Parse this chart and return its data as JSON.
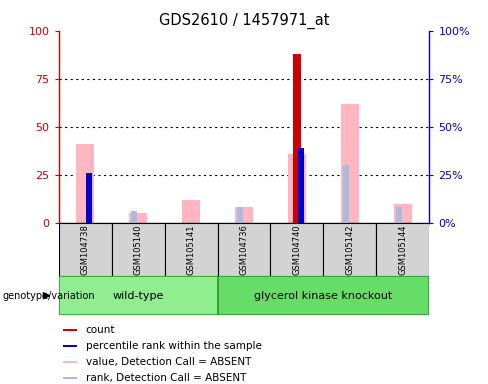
{
  "title": "GDS2610 / 1457971_at",
  "samples": [
    "GSM104738",
    "GSM105140",
    "GSM105141",
    "GSM104736",
    "GSM104740",
    "GSM105142",
    "GSM105144"
  ],
  "wildtype_count": 3,
  "count_values": [
    0,
    0,
    0,
    0,
    88,
    0,
    0
  ],
  "percentile_rank_values": [
    26,
    0,
    0,
    0,
    39,
    0,
    0
  ],
  "absent_value_values": [
    41,
    5,
    12,
    8,
    36,
    62,
    10
  ],
  "absent_rank_values": [
    0,
    6,
    0,
    8,
    0,
    30,
    8
  ],
  "ylim": [
    0,
    100
  ],
  "yticks": [
    0,
    25,
    50,
    75,
    100
  ],
  "ytick_labels_left": [
    "0",
    "25",
    "50",
    "75",
    "100"
  ],
  "ytick_labels_right": [
    "0%",
    "25%",
    "50%",
    "75%",
    "100%"
  ],
  "colors": {
    "count": "#CC0000",
    "percentile_rank": "#0000CC",
    "absent_value": "#FFB6C1",
    "absent_rank": "#AABBDD",
    "group_wildtype": "#90EE90",
    "group_knockout": "#66DD66",
    "left_axis": "#CC0000",
    "right_axis": "#0000CC"
  },
  "legend_items": [
    {
      "label": "count",
      "color": "#CC0000"
    },
    {
      "label": "percentile rank within the sample",
      "color": "#0000CC"
    },
    {
      "label": "value, Detection Call = ABSENT",
      "color": "#FFB6C1"
    },
    {
      "label": "rank, Detection Call = ABSENT",
      "color": "#AABBDD"
    }
  ],
  "genotype_label": "genotype/variation",
  "background_color": "#ffffff",
  "sample_box_color": "#D3D3D3",
  "pink_bar_width": 0.35,
  "narrow_bar_width": 0.12
}
